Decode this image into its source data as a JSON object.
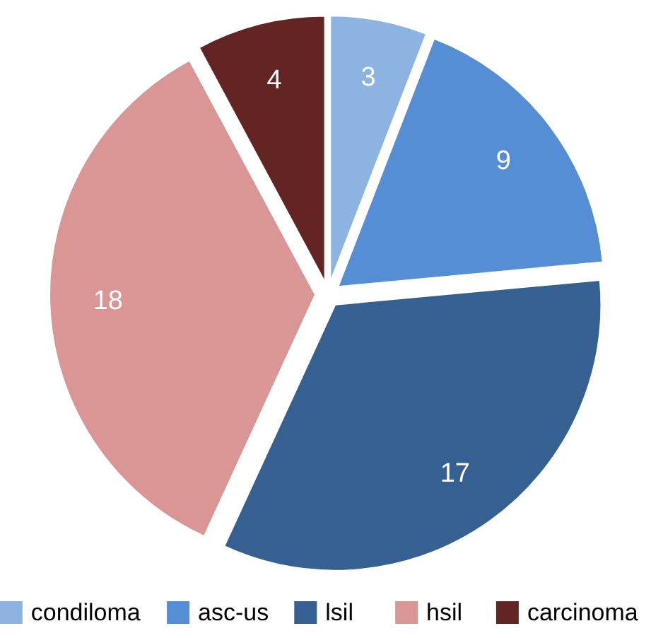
{
  "chart_data": {
    "type": "pie",
    "categories": [
      "condiloma",
      "asc-us",
      "lsil",
      "hsil",
      "carcinoma"
    ],
    "values": [
      3,
      9,
      17,
      18,
      4
    ],
    "colors": [
      "#8db3e2",
      "#558ed5",
      "#376092",
      "#d99694",
      "#632523"
    ],
    "data_labels": true,
    "legend": "bottom"
  }
}
